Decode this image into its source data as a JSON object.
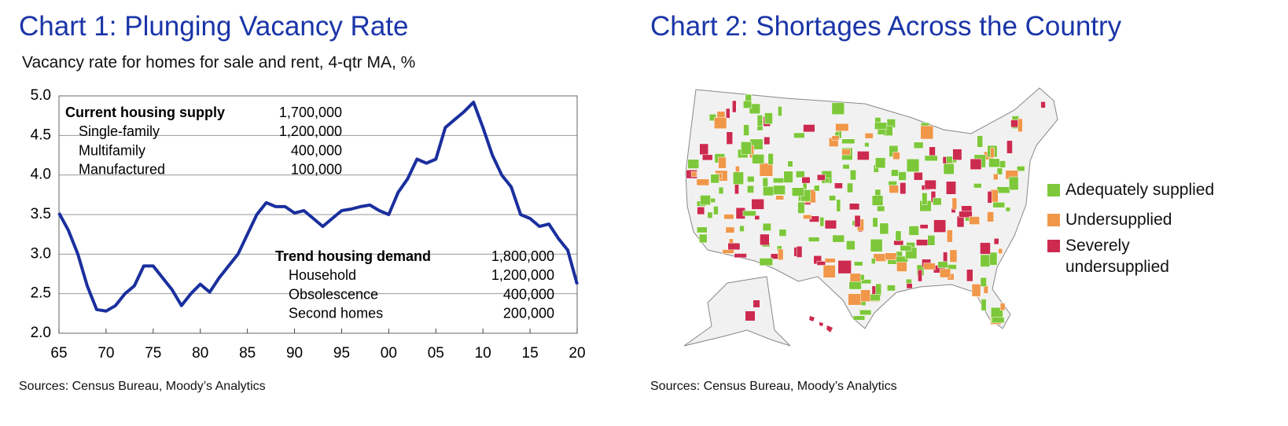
{
  "chart_data": [
    {
      "type": "line",
      "title": "Chart 1: Plunging Vacancy Rate",
      "subtitle": "Vacancy rate for homes for sale and rent, 4-qtr MA, %",
      "source": "Sources: Census Bureau, Moody’s Analytics",
      "color": "#1a2f9e",
      "x": [
        1965,
        1966,
        1967,
        1968,
        1969,
        1970,
        1971,
        1972,
        1973,
        1974,
        1975,
        1976,
        1977,
        1978,
        1979,
        1980,
        1981,
        1982,
        1983,
        1984,
        1985,
        1986,
        1987,
        1988,
        1989,
        1990,
        1991,
        1992,
        1993,
        1994,
        1995,
        1996,
        1997,
        1998,
        1999,
        2000,
        2001,
        2002,
        2003,
        2004,
        2005,
        2006,
        2007,
        2008,
        2009,
        2010,
        2011,
        2012,
        2013,
        2014,
        2015,
        2016,
        2017,
        2018,
        2019,
        2020
      ],
      "values": [
        3.52,
        3.3,
        3.0,
        2.6,
        2.3,
        2.28,
        2.35,
        2.5,
        2.6,
        2.85,
        2.85,
        2.7,
        2.55,
        2.35,
        2.5,
        2.62,
        2.52,
        2.7,
        2.85,
        3.0,
        3.25,
        3.5,
        3.65,
        3.6,
        3.6,
        3.52,
        3.55,
        3.45,
        3.35,
        3.45,
        3.55,
        3.57,
        3.6,
        3.62,
        3.55,
        3.5,
        3.78,
        3.95,
        4.2,
        4.15,
        4.2,
        4.6,
        4.7,
        4.8,
        4.92,
        4.6,
        4.25,
        4.0,
        3.85,
        3.5,
        3.45,
        3.35,
        3.38,
        3.2,
        3.05,
        2.62
      ],
      "xlim": [
        1965,
        2020
      ],
      "xticks": [
        {
          "value": 1965,
          "label": "65"
        },
        {
          "value": 1970,
          "label": "70"
        },
        {
          "value": 1975,
          "label": "75"
        },
        {
          "value": 1980,
          "label": "80"
        },
        {
          "value": 1985,
          "label": "85"
        },
        {
          "value": 1990,
          "label": "90"
        },
        {
          "value": 1995,
          "label": "95"
        },
        {
          "value": 2000,
          "label": "00"
        },
        {
          "value": 2005,
          "label": "05"
        },
        {
          "value": 2010,
          "label": "10"
        },
        {
          "value": 2015,
          "label": "15"
        },
        {
          "value": 2020,
          "label": "20"
        }
      ],
      "ylim": [
        2.0,
        5.0
      ],
      "yticks": [
        {
          "value": 2,
          "label": "2.0"
        },
        2.5,
        {
          "value": 3,
          "label": "3.0"
        },
        3.5,
        {
          "value": 4,
          "label": "4.0"
        },
        4.5,
        {
          "value": 5,
          "label": "5.0"
        }
      ],
      "grid": true,
      "annotations": [
        {
          "rows": [
            [
              "Current housing supply",
              "1,700,000"
            ],
            [
              "Single-family",
              "1,200,000"
            ],
            [
              "Multifamily",
              "400,000"
            ],
            [
              "Manufactured",
              "100,000"
            ]
          ]
        },
        {
          "rows": [
            [
              "Trend housing demand",
              "1,800,000"
            ],
            [
              "Household",
              "1,200,000"
            ],
            [
              "Obsolescence",
              "400,000"
            ],
            [
              "Second homes",
              "200,000"
            ]
          ]
        }
      ]
    },
    {
      "type": "map",
      "title": "Chart 2: Shortages Across the Country",
      "source": "Sources: Census Bureau, Moody’s Analytics",
      "legend": [
        {
          "name": "Adequately supplied",
          "color": "#7dc83a"
        },
        {
          "name": "Undersupplied",
          "color": "#f0974a"
        },
        {
          "name": "Severely undersupplied",
          "color": "#cc2a4e"
        }
      ]
    }
  ]
}
